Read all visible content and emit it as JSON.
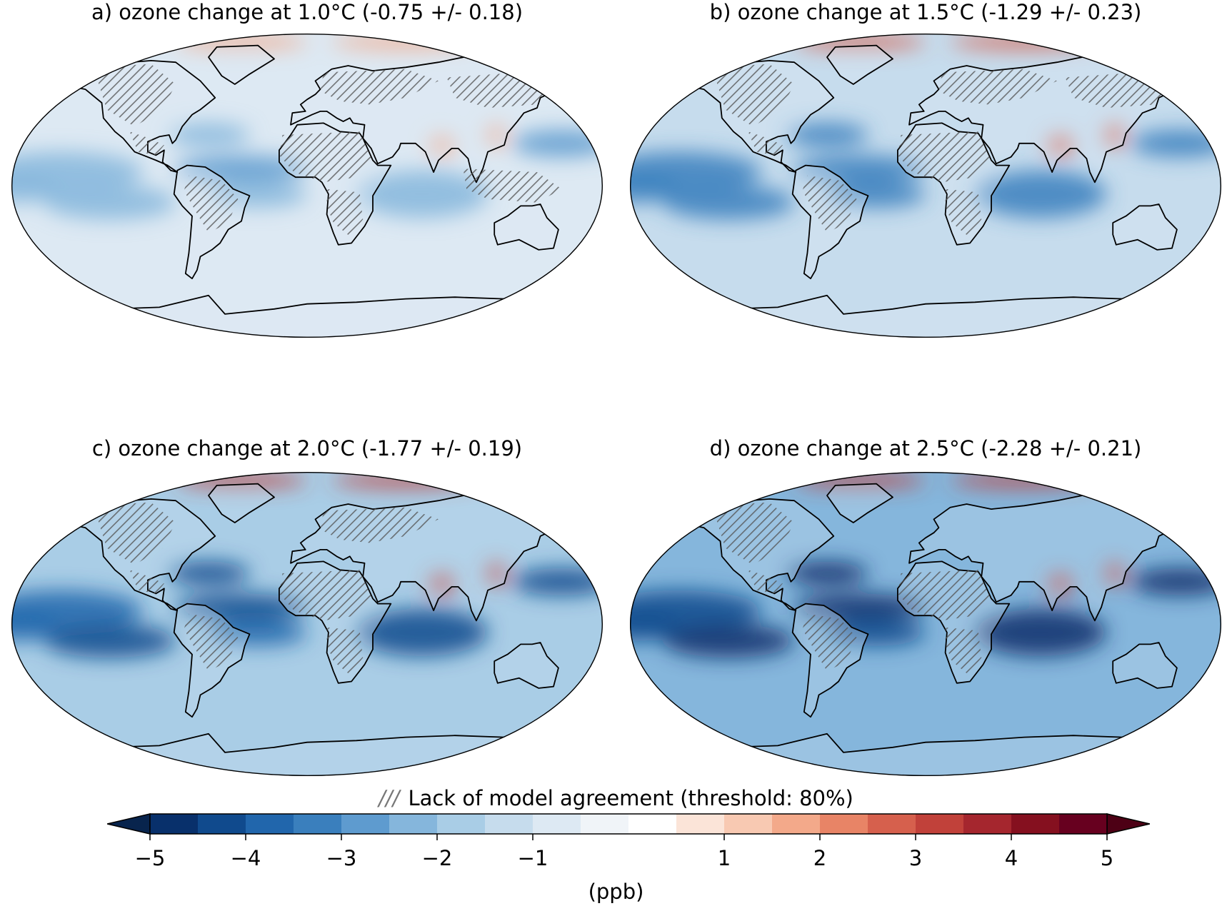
{
  "panels": [
    {
      "id": "a",
      "title": "a) ozone change at 1.0°C (-0.75 +/- 0.18)",
      "global_mean": -0.75,
      "uncertainty": 0.18,
      "warming_c": 1.0,
      "intensity": 0.35
    },
    {
      "id": "b",
      "title": "b) ozone change at 1.5°C (-1.29 +/- 0.23)",
      "global_mean": -1.29,
      "uncertainty": 0.23,
      "warming_c": 1.5,
      "intensity": 0.6
    },
    {
      "id": "c",
      "title": "c) ozone change at 2.0°C (-1.77 +/- 0.19)",
      "global_mean": -1.77,
      "uncertainty": 0.19,
      "warming_c": 2.0,
      "intensity": 0.82
    },
    {
      "id": "d",
      "title": "d) ozone change at 2.5°C (-2.28 +/- 0.21)",
      "global_mean": -2.28,
      "uncertainty": 0.21,
      "warming_c": 2.5,
      "intensity": 1.0
    }
  ],
  "legend": {
    "hatch_symbol": "///",
    "hatch_label": "Lack of model agreement (threshold: 80%)"
  },
  "colorbar": {
    "unit": "(ppb)",
    "min": -5,
    "max": 5,
    "extend": "both",
    "ticks": [
      {
        "value": -5,
        "label": "−5"
      },
      {
        "value": -4,
        "label": "−4"
      },
      {
        "value": -3,
        "label": "−3"
      },
      {
        "value": -2,
        "label": "−2"
      },
      {
        "value": -1,
        "label": "−1"
      },
      {
        "value": 1,
        "label": "1"
      },
      {
        "value": 2,
        "label": "2"
      },
      {
        "value": 3,
        "label": "3"
      },
      {
        "value": 4,
        "label": "4"
      },
      {
        "value": 5,
        "label": "5"
      }
    ],
    "colors": [
      "#08306b",
      "#104a8d",
      "#2166ac",
      "#3a7fbd",
      "#5e9bcf",
      "#85b6dc",
      "#a9cde6",
      "#c6dced",
      "#dde9f3",
      "#f0f4f8",
      "#ffffff",
      "#fbe4d8",
      "#f8c9b2",
      "#f3a98a",
      "#e88466",
      "#d6604d",
      "#c1413a",
      "#a5262e",
      "#85101f",
      "#67001f"
    ],
    "extend_low_color": "#08244d",
    "extend_high_color": "#4d0015"
  }
}
